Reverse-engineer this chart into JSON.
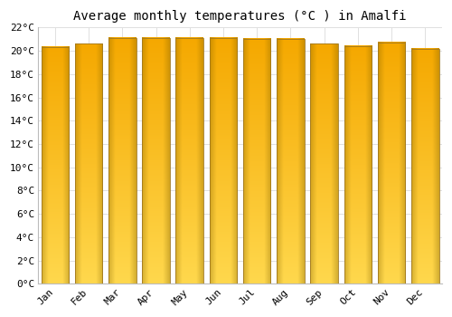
{
  "title": "Average monthly temperatures (°C ) in Amalfi",
  "months": [
    "Jan",
    "Feb",
    "Mar",
    "Apr",
    "May",
    "Jun",
    "Jul",
    "Aug",
    "Sep",
    "Oct",
    "Nov",
    "Dec"
  ],
  "values": [
    20.3,
    20.6,
    21.1,
    21.1,
    21.1,
    21.1,
    21.0,
    21.0,
    20.6,
    20.4,
    20.7,
    20.2
  ],
  "ylim": [
    0,
    22
  ],
  "yticks": [
    0,
    2,
    4,
    6,
    8,
    10,
    12,
    14,
    16,
    18,
    20,
    22
  ],
  "bar_color_top": "#F5A800",
  "bar_color_bottom": "#FFD84D",
  "bar_edge_color": "#9E7000",
  "background_color": "#ffffff",
  "grid_color": "#e0e0e0",
  "title_fontsize": 10,
  "tick_fontsize": 8,
  "font_family": "monospace",
  "bar_width": 0.82
}
